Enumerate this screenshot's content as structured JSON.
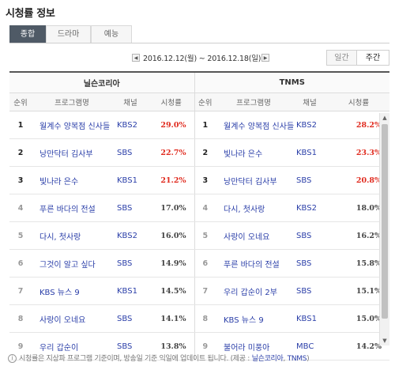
{
  "title": "시청률 정보",
  "tabs": [
    {
      "label": "종합",
      "active": true
    },
    {
      "label": "드라마",
      "active": false
    },
    {
      "label": "예능",
      "active": false
    }
  ],
  "date_nav": {
    "prev_icon": "triangle-left-icon",
    "range": "2016.12.12(월) ~ 2016.12.18(일)",
    "next_icon": "triangle-right-icon"
  },
  "period_buttons": {
    "daily": "일간",
    "weekly": "주간",
    "selected": "weekly"
  },
  "table": {
    "sources": [
      "닐슨코리아",
      "TNMS"
    ],
    "columns": [
      "순위",
      "프로그램명",
      "채널",
      "시청률"
    ],
    "rows": [
      {
        "rank": "1",
        "nielsen": {
          "program": "월계수 양복점 신사들",
          "channel": "KBS2",
          "rating": "29.0%"
        },
        "tnms": {
          "program": "월계수 양복점 신사들",
          "channel": "KBS2",
          "rating": "28.2%"
        }
      },
      {
        "rank": "2",
        "nielsen": {
          "program": "낭만닥터 김사부",
          "channel": "SBS",
          "rating": "22.7%"
        },
        "tnms": {
          "program": "빛나라 은수",
          "channel": "KBS1",
          "rating": "23.3%"
        }
      },
      {
        "rank": "3",
        "nielsen": {
          "program": "빛나라 은수",
          "channel": "KBS1",
          "rating": "21.2%"
        },
        "tnms": {
          "program": "낭만닥터 김사부",
          "channel": "SBS",
          "rating": "20.8%"
        }
      },
      {
        "rank": "4",
        "nielsen": {
          "program": "푸른 바다의 전설",
          "channel": "SBS",
          "rating": "17.0%"
        },
        "tnms": {
          "program": "다시, 첫사랑",
          "channel": "KBS2",
          "rating": "18.0%"
        }
      },
      {
        "rank": "5",
        "nielsen": {
          "program": "다시, 첫사랑",
          "channel": "KBS2",
          "rating": "16.0%"
        },
        "tnms": {
          "program": "사랑이 오네요",
          "channel": "SBS",
          "rating": "16.2%"
        }
      },
      {
        "rank": "6",
        "nielsen": {
          "program": "그것이 알고 싶다",
          "channel": "SBS",
          "rating": "14.9%"
        },
        "tnms": {
          "program": "푸른 바다의 전설",
          "channel": "SBS",
          "rating": "15.8%"
        }
      },
      {
        "rank": "7",
        "nielsen": {
          "program": "KBS 뉴스 9",
          "channel": "KBS1",
          "rating": "14.5%"
        },
        "tnms": {
          "program": "우리 갑순이 2부",
          "channel": "SBS",
          "rating": "15.1%"
        }
      },
      {
        "rank": "8",
        "nielsen": {
          "program": "사랑이 오네요",
          "channel": "SBS",
          "rating": "14.1%"
        },
        "tnms": {
          "program": "KBS 뉴스 9",
          "channel": "KBS1",
          "rating": "15.0%"
        }
      },
      {
        "rank": "9",
        "nielsen": {
          "program": "우리 갑순이",
          "channel": "SBS",
          "rating": "13.8%"
        },
        "tnms": {
          "program": "불어라 미풍아",
          "channel": "MBC",
          "rating": "14.2%"
        }
      }
    ]
  },
  "footnote": {
    "icon": "info-circle-icon",
    "text": "시청률은 지상파 프로그램 기준이며, 방송일 기준 익일에 업데이트 됩니다. (제공 : ",
    "provider1": "닐슨코리아",
    "separator": ", ",
    "provider2": "TNMS",
    "close": ")"
  },
  "colors": {
    "highlight_rating": "#e02a1e",
    "link": "#2a3ea8",
    "active_tab": "#4f5a66"
  }
}
